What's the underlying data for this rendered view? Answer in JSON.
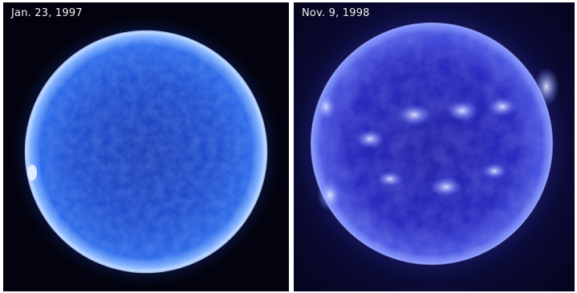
{
  "panels": [
    {
      "date": "Jan. 23, 1997"
    },
    {
      "date": "Nov. 9, 1998"
    }
  ],
  "colors": {
    "quiet_sun_disk": "#1f4fd8",
    "active_sun_disk": "#2a2ab8",
    "limb_glow": "#8fb8ff",
    "background_left": "#03030f",
    "background_right": "#0c0c3e"
  }
}
